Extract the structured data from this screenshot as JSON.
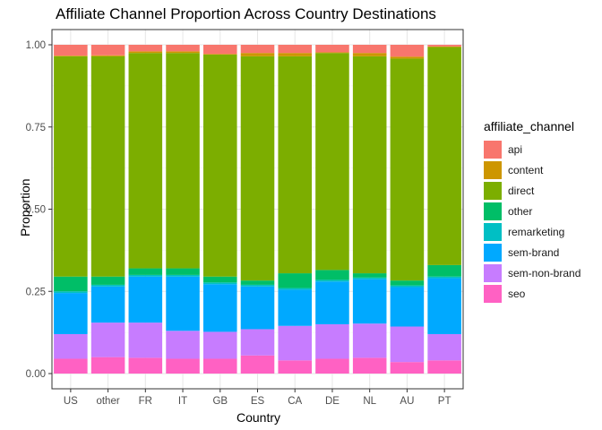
{
  "chart_data": {
    "type": "bar",
    "stacked": true,
    "title": "Affiliate Channel Proportion Across Country Destinations",
    "xlabel": "Country",
    "ylabel": "Proportion",
    "ylim": [
      0,
      1
    ],
    "yticks": [
      "0.00",
      "0.25",
      "0.50",
      "0.75",
      "1.00"
    ],
    "grid": true,
    "legend_title": "affiliate_channel",
    "legend_position": "right",
    "categories": [
      "US",
      "other",
      "FR",
      "IT",
      "GB",
      "ES",
      "CA",
      "DE",
      "NL",
      "AU",
      "PT"
    ],
    "series": [
      {
        "name": "seo",
        "color": "#FF61C3",
        "values": [
          0.045,
          0.05,
          0.048,
          0.045,
          0.045,
          0.055,
          0.04,
          0.045,
          0.048,
          0.035,
          0.04
        ]
      },
      {
        "name": "sem-non-brand",
        "color": "#C77CFF",
        "values": [
          0.075,
          0.105,
          0.107,
          0.085,
          0.082,
          0.08,
          0.105,
          0.105,
          0.104,
          0.108,
          0.08
        ]
      },
      {
        "name": "sem-brand",
        "color": "#00A9FF",
        "values": [
          0.125,
          0.11,
          0.14,
          0.165,
          0.145,
          0.13,
          0.11,
          0.13,
          0.135,
          0.12,
          0.17
        ]
      },
      {
        "name": "remarketing",
        "color": "#00BFC4",
        "values": [
          0.005,
          0.005,
          0.005,
          0.005,
          0.005,
          0.005,
          0.005,
          0.005,
          0.005,
          0.005,
          0.005
        ]
      },
      {
        "name": "other",
        "color": "#00BE67",
        "values": [
          0.045,
          0.025,
          0.02,
          0.02,
          0.018,
          0.013,
          0.045,
          0.03,
          0.013,
          0.015,
          0.035
        ]
      },
      {
        "name": "direct",
        "color": "#7CAE00",
        "values": [
          0.67,
          0.67,
          0.655,
          0.655,
          0.675,
          0.682,
          0.66,
          0.66,
          0.66,
          0.675,
          0.663
        ]
      },
      {
        "name": "content",
        "color": "#CD9600",
        "values": [
          0.002,
          0.003,
          0.005,
          0.005,
          0.002,
          0.01,
          0.01,
          0.002,
          0.01,
          0.006,
          0.002
        ]
      },
      {
        "name": "api",
        "color": "#F8766D",
        "values": [
          0.033,
          0.032,
          0.02,
          0.02,
          0.028,
          0.025,
          0.025,
          0.023,
          0.025,
          0.036,
          0.005
        ]
      }
    ]
  },
  "legend_order": [
    "api",
    "content",
    "direct",
    "other",
    "remarketing",
    "sem-brand",
    "sem-non-brand",
    "seo"
  ]
}
